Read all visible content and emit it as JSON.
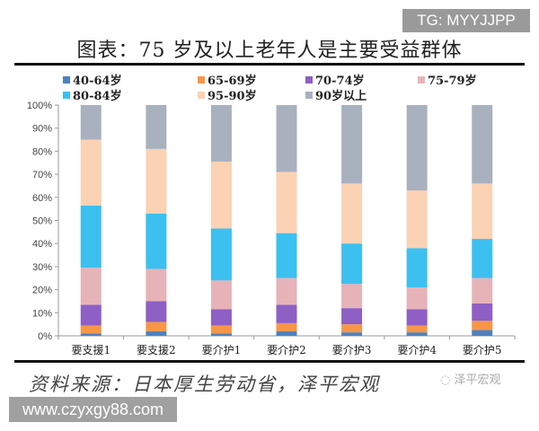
{
  "watermark_tg": "TG: MYYJJPP",
  "watermark_site": "www.czyxgy88.com",
  "watermark_brand": "泽平宏观",
  "source": "资料来源：日本厚生劳动省，泽平宏观",
  "chart_data": {
    "type": "bar",
    "stacked": true,
    "title": "图表：75 岁及以上老年人是主要受益群体",
    "categories": [
      "要支援1",
      "要支援2",
      "要介护1",
      "要介护2",
      "要介护3",
      "要介护4",
      "要介护5"
    ],
    "ylim": [
      0,
      100
    ],
    "yticks": [
      "0%",
      "10%",
      "20%",
      "30%",
      "40%",
      "50%",
      "60%",
      "70%",
      "80%",
      "90%",
      "100%"
    ],
    "legend_position": "top",
    "grid": false,
    "series": [
      {
        "name": "40-64岁",
        "color": "#4f81bd",
        "values": [
          1,
          2,
          1,
          2,
          1.5,
          1.5,
          2.5
        ]
      },
      {
        "name": "65-69岁",
        "color": "#f79646",
        "values": [
          3.5,
          4,
          3.5,
          3.5,
          3.5,
          3,
          4
        ]
      },
      {
        "name": "70-74岁",
        "color": "#8e5fc4",
        "values": [
          9,
          9,
          7,
          8,
          7,
          7,
          7.5
        ]
      },
      {
        "name": "75-79岁",
        "color": "#e6b3b8",
        "values": [
          16,
          14,
          12.5,
          11.5,
          10.5,
          9.5,
          11
        ]
      },
      {
        "name": "80-84岁",
        "color": "#3cc0f0",
        "values": [
          27,
          24,
          22.5,
          19.5,
          17.5,
          17,
          17
        ]
      },
      {
        "name": "95-90岁",
        "color": "#fbd2b4",
        "values": [
          28.5,
          28,
          29,
          26.5,
          26,
          25,
          24
        ]
      },
      {
        "name": "90岁以上",
        "color": "#a9b1bf",
        "values": [
          15,
          19,
          24.5,
          29,
          34,
          37,
          34
        ]
      }
    ]
  }
}
